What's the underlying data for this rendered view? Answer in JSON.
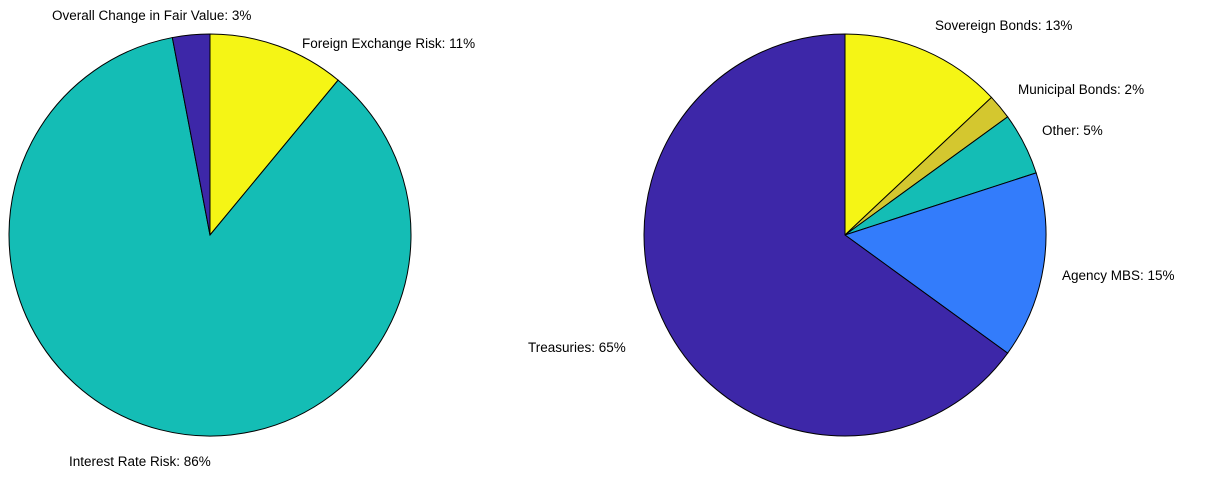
{
  "chart_data": [
    {
      "type": "pie",
      "slices": [
        {
          "label": "Foreign Exchange Risk: 11%",
          "value": 11,
          "color": "#f5f515"
        },
        {
          "label": "Interest Rate Risk: 86%",
          "value": 86,
          "color": "#14bdb5"
        },
        {
          "label": "Overall Change in Fair Value: 3%",
          "value": 3,
          "color": "#3d27a8"
        }
      ]
    },
    {
      "type": "pie",
      "slices": [
        {
          "label": "Sovereign Bonds: 13%",
          "value": 13,
          "color": "#f5f515"
        },
        {
          "label": "Municipal Bonds: 2%",
          "value": 2,
          "color": "#d4c72f"
        },
        {
          "label": "Other: 5%",
          "value": 5,
          "color": "#14bdb5"
        },
        {
          "label": "Agency MBS: 15%",
          "value": 15,
          "color": "#337cfb"
        },
        {
          "label": "Treasuries: 65%",
          "value": 65,
          "color": "#3d27a8"
        }
      ]
    }
  ]
}
